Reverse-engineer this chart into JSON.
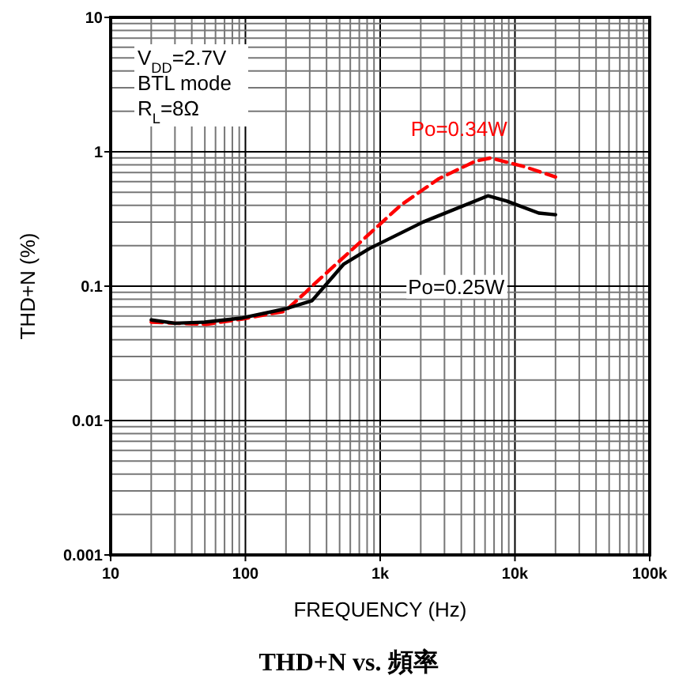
{
  "chart_data": {
    "type": "line",
    "title": "THD+N vs. 頻率",
    "xlabel": "FREQUENCY (Hz)",
    "ylabel": "THD+N (%)",
    "log": "xy",
    "grid": true,
    "marker": "none",
    "xlim": [
      10,
      100000
    ],
    "xticks": [
      {
        "value": 10,
        "label": "10"
      },
      {
        "value": 100,
        "label": "100"
      },
      {
        "value": 1000,
        "label": "1k"
      },
      {
        "value": 10000,
        "label": "10k"
      },
      {
        "value": 100000,
        "label": "100k"
      }
    ],
    "ylim": [
      0.001,
      10
    ],
    "yticks": [
      0.001,
      0.01,
      0.1,
      1,
      10
    ],
    "annotations": [
      "V$_{DD}$=2.7V",
      "BTL mode",
      "R$_{L}$=8Ω"
    ],
    "series": [
      {
        "name": "Po=0.34W",
        "color": "#ff0000",
        "line_style": "dashed",
        "x": [
          20,
          30,
          51,
          95,
          124,
          196,
          280,
          312,
          450,
          703,
          1420,
          2720,
          5080,
          6600,
          11500,
          20000
        ],
        "values": [
          0.054,
          0.053,
          0.052,
          0.057,
          0.06,
          0.065,
          0.09,
          0.1,
          0.14,
          0.21,
          0.4,
          0.63,
          0.85,
          0.9,
          0.78,
          0.65
        ]
      },
      {
        "name": "Po=0.25W",
        "color": "#000000",
        "line_style": "solid",
        "x": [
          20,
          30,
          50,
          95,
          200,
          312,
          387,
          537,
          828,
          2080,
          6300,
          8700,
          15000,
          20000
        ],
        "values": [
          0.056,
          0.053,
          0.054,
          0.058,
          0.068,
          0.078,
          0.1,
          0.146,
          0.19,
          0.3,
          0.47,
          0.43,
          0.35,
          0.34
        ]
      }
    ]
  }
}
